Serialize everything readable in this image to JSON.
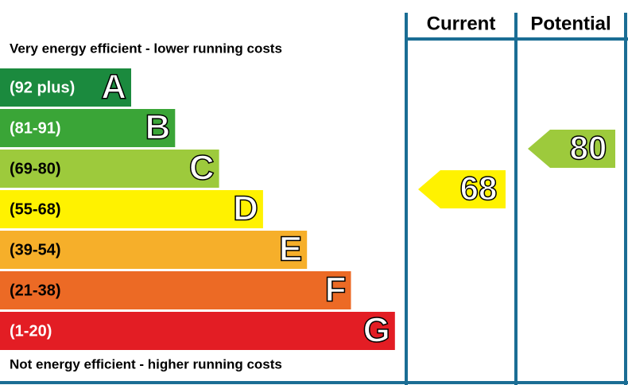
{
  "top_label": "Very energy efficient - lower running costs",
  "bottom_label": "Not energy efficient - higher running costs",
  "bands": [
    {
      "range": "(92 plus)",
      "letter": "A",
      "color": "#1b8a3e",
      "text_color": "#ffffff"
    },
    {
      "range": "(81-91)",
      "letter": "B",
      "color": "#3aa537",
      "text_color": "#ffffff"
    },
    {
      "range": "(69-80)",
      "letter": "C",
      "color": "#9dca3c",
      "text_color": "#000000"
    },
    {
      "range": "(55-68)",
      "letter": "D",
      "color": "#fff200",
      "text_color": "#000000"
    },
    {
      "range": "(39-54)",
      "letter": "E",
      "color": "#f6af2a",
      "text_color": "#000000"
    },
    {
      "range": "(21-38)",
      "letter": "F",
      "color": "#ec6a25",
      "text_color": "#000000"
    },
    {
      "range": "(1-20)",
      "letter": "G",
      "color": "#e31d24",
      "text_color": "#ffffff"
    }
  ],
  "columns": [
    "Current",
    "Potential"
  ],
  "ratings": [
    {
      "value": 68,
      "color": "#fff200"
    },
    {
      "value": 80,
      "color": "#9dca3c"
    }
  ]
}
